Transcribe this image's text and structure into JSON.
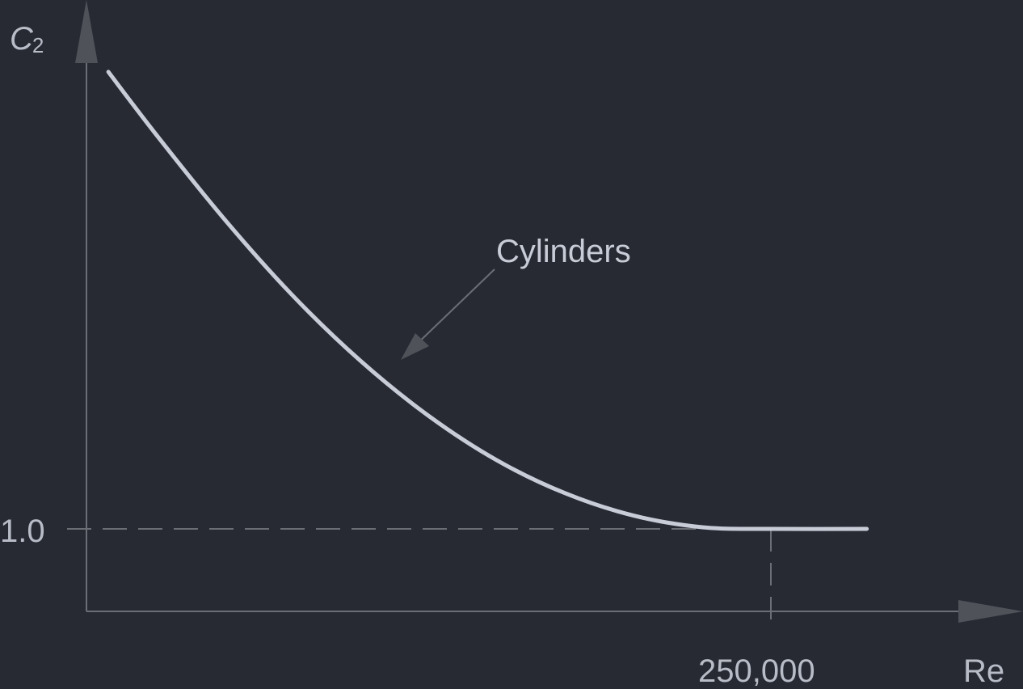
{
  "chart_data": {
    "type": "line",
    "xlabel": "Re",
    "ylabel_main": "C",
    "ylabel_sub": "2",
    "x_tick_labels": [
      "250,000"
    ],
    "y_tick_labels": [
      "1.0"
    ],
    "annotations": [
      {
        "text": "Cylinders",
        "points_to": "curve"
      }
    ],
    "series": [
      {
        "name": "Cylinders",
        "x": [
          8000,
          25000,
          50000,
          75000,
          100000,
          125000,
          150000,
          175000,
          200000,
          225000,
          250000,
          285000
        ],
        "y": [
          6.54,
          5.8,
          4.77,
          3.84,
          3.04,
          2.37,
          1.83,
          1.43,
          1.16,
          1.02,
          1.0,
          1.0
        ]
      }
    ],
    "reference_lines": [
      {
        "orientation": "horizontal",
        "value": 1.0,
        "style": "dashed"
      },
      {
        "orientation": "vertical",
        "value": 250000,
        "style": "dashed"
      }
    ],
    "ylim": [
      0,
      7.0
    ],
    "xlim": [
      0,
      300000
    ],
    "grid": false,
    "colors": {
      "background": "#272a33",
      "axis": "#6b6e75",
      "curve": "#c8ccd6",
      "text": "#b8bcc6"
    }
  }
}
